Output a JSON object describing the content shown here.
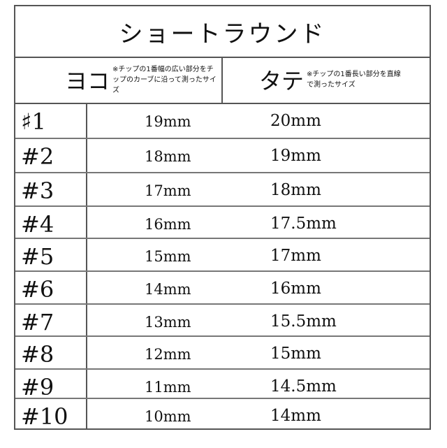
{
  "title": "ショートラウンド",
  "header": {
    "width_label": "ヨコ",
    "width_note": "※チップの1番幅の広い部分をチップのカーブに沿って測ったサイズ",
    "length_label": "タテ",
    "length_note": "※チップの1番長い部分を直線で測ったサイズ"
  },
  "rows": [
    {
      "size": "♯1",
      "width": "19mm",
      "length": "20mm"
    },
    {
      "size": "#2",
      "width": "18mm",
      "length": "19mm"
    },
    {
      "size": "#3",
      "width": "17mm",
      "length": "18mm"
    },
    {
      "size": "#4",
      "width": "16mm",
      "length": "17.5mm"
    },
    {
      "size": "#5",
      "width": "15mm",
      "length": "17mm"
    },
    {
      "size": "#6",
      "width": "14mm",
      "length": "16mm"
    },
    {
      "size": "#7",
      "width": "13mm",
      "length": "15.5mm"
    },
    {
      "size": "#8",
      "width": "12mm",
      "length": "15mm"
    },
    {
      "size": "#9",
      "width": "11mm",
      "length": "14.5mm"
    },
    {
      "size": "#10",
      "width": "10mm",
      "length": "14mm"
    }
  ]
}
